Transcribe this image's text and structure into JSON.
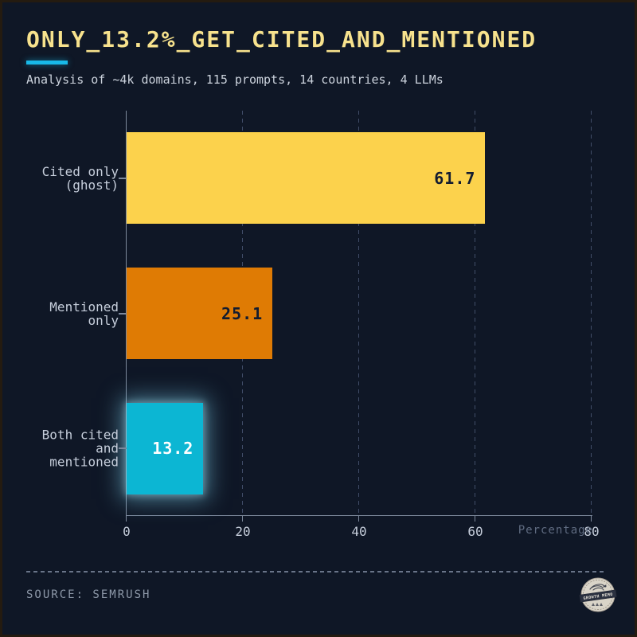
{
  "header": {
    "title": "ONLY_13.2%_GET_CITED_AND_MENTIONED",
    "subtitle": "Analysis of ~4k domains, 115 prompts, 14 countries, 4 LLMs"
  },
  "chart_data": {
    "type": "bar",
    "orientation": "horizontal",
    "title": "ONLY_13.2%_GET_CITED_AND_MENTIONED",
    "subtitle": "Analysis of ~4k domains, 115 prompts, 14 countries, 4 LLMs",
    "categories": [
      [
        "Cited only",
        "(ghost)"
      ],
      [
        "Mentioned",
        "only"
      ],
      [
        "Both cited",
        "and",
        "mentioned"
      ]
    ],
    "values": [
      61.7,
      25.1,
      13.2
    ],
    "value_labels": [
      "61.7",
      "25.1",
      "13.2"
    ],
    "bar_colors": [
      "#fcd24c",
      "#df7b04",
      "#0cb6d3"
    ],
    "value_label_colors": [
      "#131c30",
      "#131c30",
      "#ffffff"
    ],
    "highlight_glow_index": 2,
    "xlabel": "Percentage",
    "xticks": [
      0,
      20,
      40,
      60,
      80
    ],
    "xlim": [
      0,
      80
    ],
    "grid": "dashed-vertical",
    "legend": "none"
  },
  "colors": {
    "background": "#0f1726",
    "title": "#f7e28d",
    "accent_underline": "#18b9e8",
    "axis": "#7d899c",
    "tick_label": "#c6cedb",
    "xlabel_dim": "#5f6b80",
    "source_text": "#8d98a8"
  },
  "footer": {
    "source": "SOURCE: SEMRUSH",
    "logo": {
      "text": "GROWTH MEMO"
    }
  }
}
